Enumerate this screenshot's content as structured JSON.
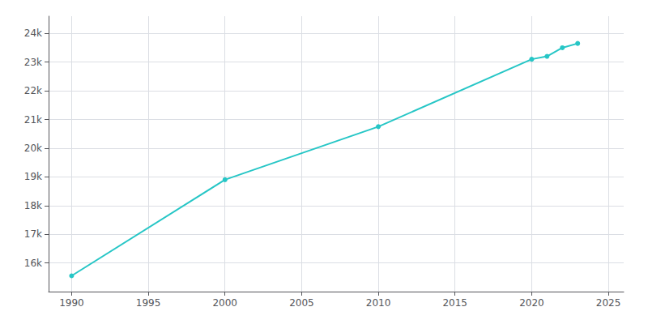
{
  "chart_data": {
    "type": "line",
    "x": [
      1990,
      2000,
      2010,
      2020,
      2021,
      2022,
      2023
    ],
    "values": [
      15550,
      18900,
      20750,
      23100,
      23200,
      23500,
      23650
    ],
    "color": "#26c6c6",
    "marker": "circle",
    "xlim": [
      1988.5,
      2026
    ],
    "xticks": [
      1990,
      1995,
      2000,
      2005,
      2010,
      2015,
      2020,
      2025
    ],
    "ylim": [
      15000,
      24600
    ],
    "yticks": [
      {
        "value": 16000,
        "label": "16k"
      },
      {
        "value": 17000,
        "label": "17k"
      },
      {
        "value": 18000,
        "label": "18k"
      },
      {
        "value": 19000,
        "label": "19k"
      },
      {
        "value": 20000,
        "label": "20k"
      },
      {
        "value": 21000,
        "label": "21k"
      },
      {
        "value": 22000,
        "label": "22k"
      },
      {
        "value": 23000,
        "label": "23k"
      },
      {
        "value": 24000,
        "label": "24k"
      }
    ],
    "grid": true
  }
}
